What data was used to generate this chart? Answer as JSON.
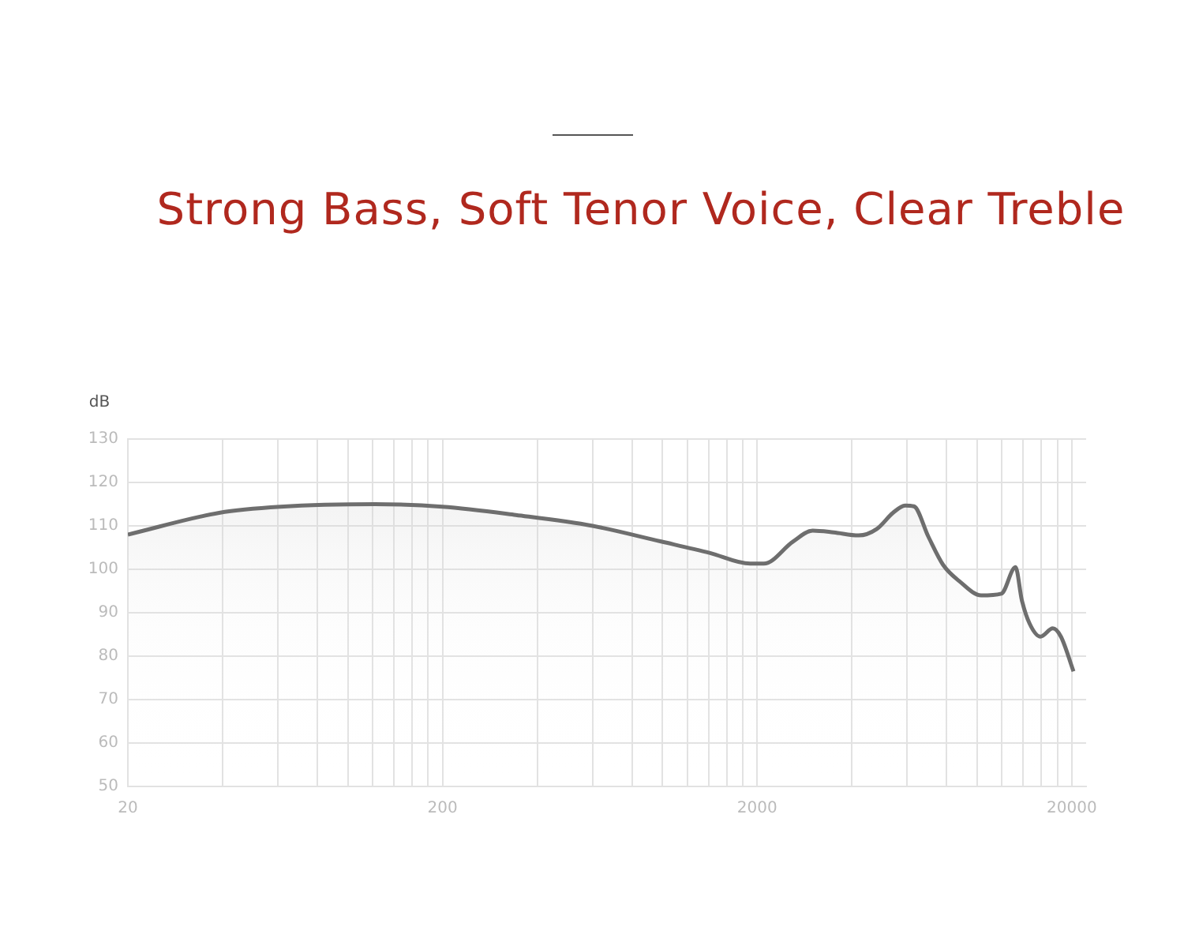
{
  "chart_data": {
    "type": "area",
    "title": "Strong Bass, Soft Tenor Voice, Clear Treble",
    "ylabel": "dB",
    "log": "x",
    "grid": true,
    "legend": false,
    "xlim": [
      20,
      22200
    ],
    "ylim": [
      50,
      130
    ],
    "xticks": [
      20,
      {
        "value": 40,
        "label": null
      },
      {
        "value": 60,
        "label": null
      },
      {
        "value": 80,
        "label": null
      },
      {
        "value": 100,
        "label": null
      },
      {
        "value": 120,
        "label": null
      },
      {
        "value": 140,
        "label": null
      },
      {
        "value": 160,
        "label": null
      },
      {
        "value": 180,
        "label": null
      },
      200,
      {
        "value": 400,
        "label": null
      },
      {
        "value": 600,
        "label": null
      },
      {
        "value": 800,
        "label": null
      },
      {
        "value": 1000,
        "label": null
      },
      {
        "value": 1200,
        "label": null
      },
      {
        "value": 1400,
        "label": null
      },
      {
        "value": 1600,
        "label": null
      },
      {
        "value": 1800,
        "label": null
      },
      2000,
      {
        "value": 4000,
        "label": null
      },
      {
        "value": 6000,
        "label": null
      },
      {
        "value": 8000,
        "label": null
      },
      {
        "value": 10000,
        "label": null
      },
      {
        "value": 12000,
        "label": null
      },
      {
        "value": 14000,
        "label": null
      },
      {
        "value": 16000,
        "label": null
      },
      {
        "value": 18000,
        "label": null
      },
      20000
    ],
    "yticks": [
      50,
      60,
      70,
      80,
      90,
      100,
      110,
      120,
      130
    ],
    "series": [
      {
        "color": "#6e6e6e",
        "x": [
          20,
          39,
          61,
          122,
          200,
          342,
          600,
          990,
          1410,
          1900,
          2100,
          2600,
          3000,
          3500,
          4200,
          4800,
          5400,
          5900,
          6300,
          7000,
          7800,
          8770,
          10300,
          11940,
          13240,
          13870,
          14680,
          15900,
          17400,
          18460,
          20240
        ],
        "values": [
          108,
          113,
          114.4,
          115,
          114.4,
          112.5,
          110,
          106.4,
          103.8,
          101.3,
          101.3,
          106.4,
          108.9,
          108.5,
          107.8,
          109.3,
          113,
          114.7,
          114.5,
          107.5,
          101,
          97.3,
          94,
          94.4,
          100.5,
          92.9,
          87.5,
          84.5,
          86.4,
          84.5,
          76.5
        ]
      }
    ]
  }
}
